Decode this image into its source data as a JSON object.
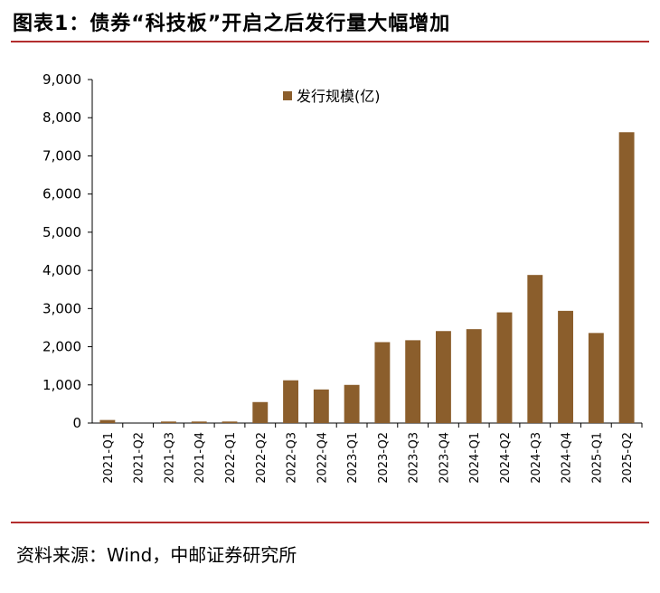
{
  "title": "图表1：债券“科技板”开启之后发行量大幅增加",
  "source": "资料来源：Wind，中邮证券研究所",
  "colors": {
    "bar": "#8b5e2c",
    "rule": "#b32d2e",
    "axis": "#000000"
  },
  "chart_data": {
    "type": "bar",
    "categories": [
      "2021-Q1",
      "2021-Q2",
      "2021-Q3",
      "2021-Q4",
      "2022-Q1",
      "2022-Q2",
      "2022-Q3",
      "2022-Q4",
      "2023-Q1",
      "2023-Q2",
      "2023-Q3",
      "2023-Q4",
      "2024-Q1",
      "2024-Q2",
      "2024-Q3",
      "2024-Q4",
      "2025-Q1",
      "2025-Q2"
    ],
    "series": [
      {
        "name": "发行规模(亿)",
        "values": [
          80,
          0,
          40,
          40,
          40,
          550,
          1120,
          880,
          1000,
          2120,
          2170,
          2410,
          2460,
          2900,
          3880,
          2940,
          2360,
          7620
        ]
      }
    ],
    "ylim": [
      0,
      9000
    ],
    "yticks": [
      0,
      1000,
      2000,
      3000,
      4000,
      5000,
      6000,
      7000,
      8000,
      9000
    ],
    "ytick_labels": [
      "0",
      "1,000",
      "2,000",
      "3,000",
      "4,000",
      "5,000",
      "6,000",
      "7,000",
      "8,000",
      "9,000"
    ],
    "grid": false,
    "legend": "top-center"
  }
}
